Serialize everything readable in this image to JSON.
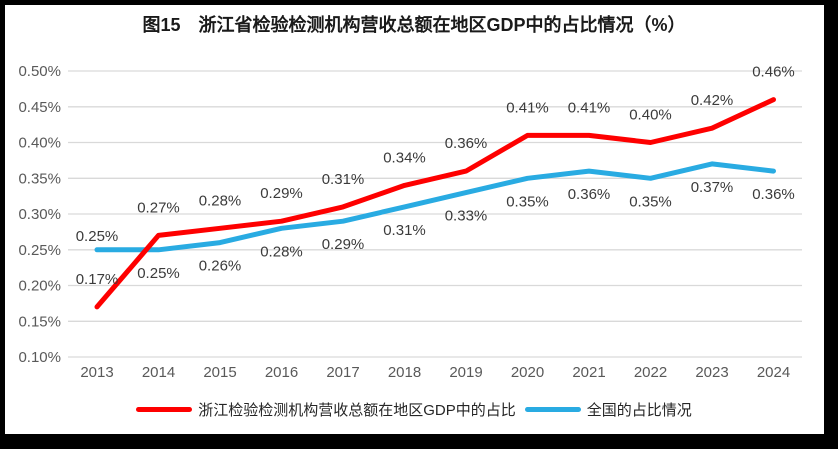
{
  "title": "图15　浙江省检验检测机构营收总额在地区GDP中的占比情况（%）",
  "colors": {
    "zhejiang_line": "#FE0000",
    "national_line": "#29ABE2",
    "gridline": "#D9D9D9",
    "axis_text": "#595959",
    "label_text": "#3B3B3B",
    "frame": "#000000",
    "background": "#FFFFFF"
  },
  "legend": {
    "items": [
      {
        "label": "浙江检验检测机构营收总额在地区GDP中的占比",
        "color": "#FE0000"
      },
      {
        "label": "全国的占比情况",
        "color": "#29ABE2"
      }
    ]
  },
  "chart_data": {
    "type": "line",
    "title": "图15　浙江省检验检测机构营收总额在地区GDP中的占比情况（%）",
    "categories": [
      "2013",
      "2014",
      "2015",
      "2016",
      "2017",
      "2018",
      "2019",
      "2020",
      "2021",
      "2022",
      "2023",
      "2024"
    ],
    "series": [
      {
        "name": "浙江检验检测机构营收总额在地区GDP中的占比",
        "color": "#FE0000",
        "values": [
          0.17,
          0.27,
          0.28,
          0.29,
          0.31,
          0.34,
          0.36,
          0.41,
          0.41,
          0.4,
          0.42,
          0.46
        ],
        "data_labels": [
          "0.17%",
          "0.27%",
          "0.28%",
          "0.29%",
          "0.31%",
          "0.34%",
          "0.36%",
          "0.41%",
          "0.41%",
          "0.40%",
          "0.42%",
          "0.46%"
        ]
      },
      {
        "name": "全国的占比情况",
        "color": "#29ABE2",
        "values": [
          0.25,
          0.25,
          0.26,
          0.28,
          0.29,
          0.31,
          0.33,
          0.35,
          0.36,
          0.35,
          0.37,
          0.36
        ],
        "data_labels": [
          "0.25%",
          "0.25%",
          "0.26%",
          "0.28%",
          "0.29%",
          "0.31%",
          "0.33%",
          "0.35%",
          "0.36%",
          "0.35%",
          "0.37%",
          "0.36%"
        ]
      }
    ],
    "xlabel": "",
    "ylabel": "",
    "ylim": [
      0.1,
      0.5
    ],
    "yticks": [
      "0.10%",
      "0.15%",
      "0.20%",
      "0.25%",
      "0.30%",
      "0.35%",
      "0.40%",
      "0.45%",
      "0.50%"
    ],
    "grid": true,
    "legend_position": "bottom"
  }
}
